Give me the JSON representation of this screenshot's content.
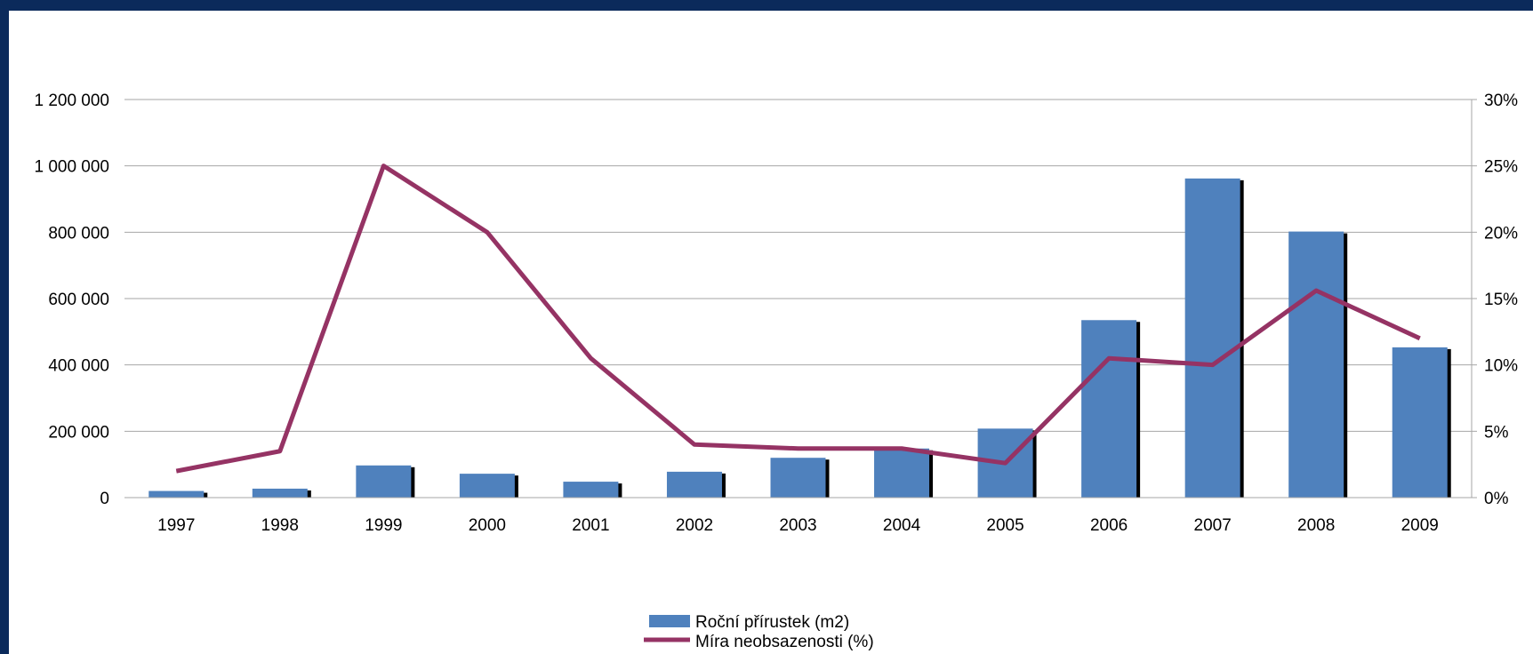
{
  "colors": {
    "bar": "#4f81bd",
    "bar_shadow": "#000000",
    "line": "#953364",
    "grid": "#a6a6a6",
    "frame_border": "#0b2a5b"
  },
  "chart_data": {
    "type": "bar",
    "categories": [
      "1997",
      "1998",
      "1999",
      "2000",
      "2001",
      "2002",
      "2003",
      "2004",
      "2005",
      "2006",
      "2007",
      "2008",
      "2009"
    ],
    "series": [
      {
        "name": "Roční přírustek (m2)",
        "type": "bar",
        "axis": "left",
        "values": [
          20000,
          27000,
          97000,
          72000,
          48000,
          78000,
          120000,
          148000,
          208000,
          535000,
          962000,
          802000,
          453000
        ]
      },
      {
        "name": "Míra neobsazenosti (%)",
        "type": "line",
        "axis": "right",
        "values": [
          2.0,
          3.5,
          25.0,
          20.0,
          10.5,
          4.0,
          3.7,
          3.7,
          2.6,
          10.5,
          10.0,
          15.6,
          12.0
        ]
      }
    ],
    "y_left": {
      "ylim": [
        0,
        1200000
      ],
      "ticks": [
        0,
        200000,
        400000,
        600000,
        800000,
        1000000,
        1200000
      ],
      "tick_labels": [
        "0",
        "200 000",
        "400 000",
        "600 000",
        "800 000",
        "1 000 000",
        "1 200 000"
      ]
    },
    "y_right": {
      "ylim": [
        0,
        30
      ],
      "ticks": [
        0,
        5,
        10,
        15,
        20,
        25,
        30
      ],
      "tick_labels": [
        "0%",
        "5%",
        "10%",
        "15%",
        "20%",
        "25%",
        "30%"
      ]
    },
    "grid": true,
    "legend": {
      "position": "bottom",
      "entries": [
        "Roční přírustek (m2)",
        "Míra neobsazenosti (%)"
      ]
    }
  }
}
